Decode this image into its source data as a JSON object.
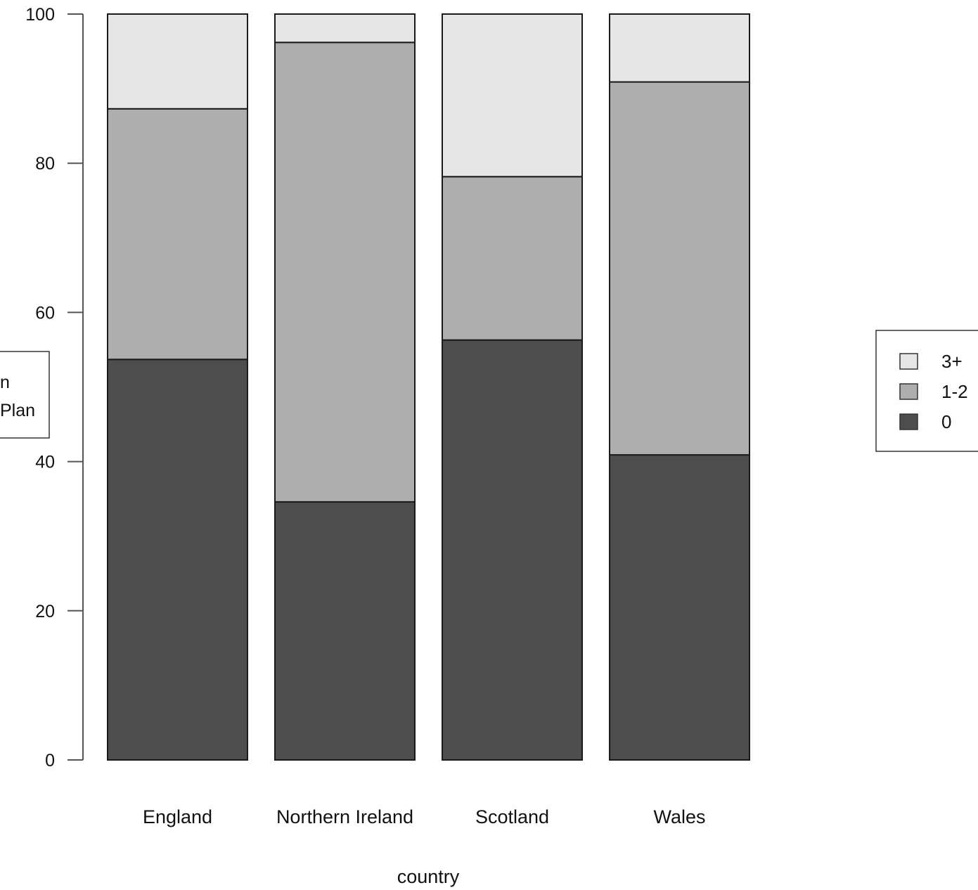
{
  "chart_data": {
    "type": "bar",
    "stacked": true,
    "categories": [
      "England",
      "Northern Ireland",
      "Scotland",
      "Wales"
    ],
    "series": [
      {
        "name": "0",
        "color": "#4d4d4d",
        "values": [
          53.7,
          34.6,
          56.3,
          40.9
        ]
      },
      {
        "name": "1-2",
        "color": "#aeaeae",
        "values": [
          33.6,
          61.6,
          21.9,
          50.0
        ]
      },
      {
        "name": "3+",
        "color": "#e6e6e6",
        "values": [
          12.7,
          3.8,
          21.8,
          9.1
        ]
      }
    ],
    "title": "",
    "xlabel": "country",
    "ylabel": "",
    "ylim": [
      0,
      100
    ],
    "yticks": [
      "0",
      "20",
      "40",
      "60",
      "80",
      "100"
    ],
    "legend": {
      "position": "right",
      "order": [
        "3+",
        "1-2",
        "0"
      ]
    },
    "clipped_legend_text": [
      "n",
      "Plan"
    ],
    "grid": false
  }
}
